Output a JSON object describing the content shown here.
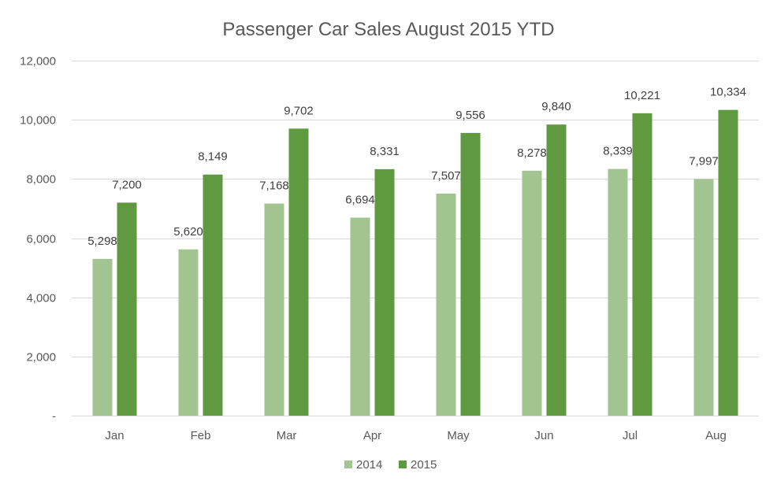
{
  "chart_data": {
    "type": "bar",
    "title": "Passenger Car Sales August 2015 YTD",
    "xlabel": "",
    "ylabel": "",
    "categories": [
      "Jan",
      "Feb",
      "Mar",
      "Apr",
      "May",
      "Jun",
      "Jul",
      "Aug"
    ],
    "series": [
      {
        "name": "2014",
        "color": "#a1c490",
        "values": [
          5298,
          5620,
          7168,
          6694,
          7507,
          8278,
          8339,
          7997
        ],
        "labels": [
          "5,298",
          "5,620",
          "7,168",
          "6,694",
          "7,507",
          "8,278",
          "8,339",
          "7,997"
        ]
      },
      {
        "name": "2015",
        "color": "#5f9a40",
        "values": [
          7200,
          8149,
          9702,
          8331,
          9556,
          9840,
          10221,
          10334
        ],
        "labels": [
          "7,200",
          "8,149",
          "9,702",
          "8,331",
          "9,556",
          "9,840",
          "10,221",
          "10,334"
        ]
      }
    ],
    "ylim": [
      0,
      12000
    ],
    "yticks": [
      0,
      2000,
      4000,
      6000,
      8000,
      10000,
      12000
    ],
    "ytick_labels": [
      "-",
      "2,000",
      "4,000",
      "6,000",
      "8,000",
      "10,000",
      "12,000"
    ],
    "grid": true,
    "gridline_color": "#d9d9d9",
    "legend_position": "bottom"
  }
}
